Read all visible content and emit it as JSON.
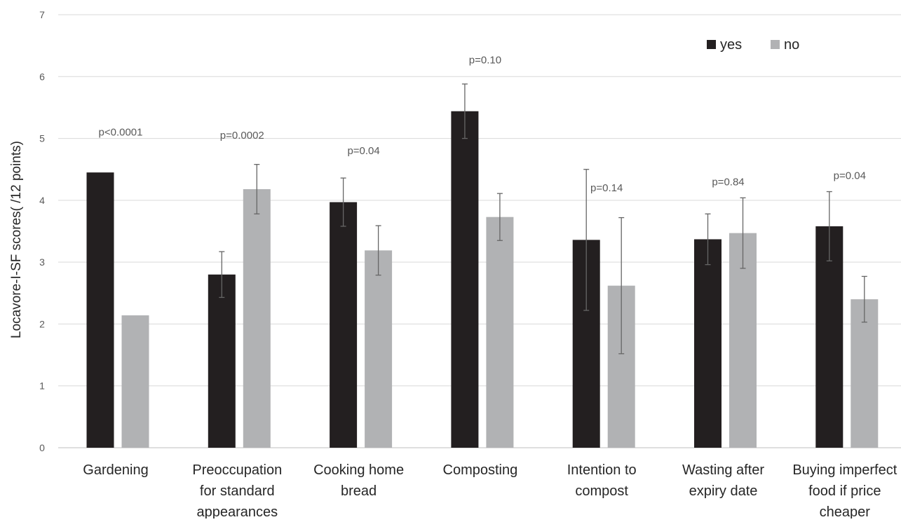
{
  "chart_data": {
    "type": "bar",
    "title": "",
    "xlabel": "",
    "ylabel": "Locavore-I-SF scores( /12 points)",
    "ylim": [
      0,
      7
    ],
    "yticks": [
      0,
      1,
      2,
      3,
      4,
      5,
      6,
      7
    ],
    "grid": true,
    "legend_position": "top-right",
    "categories": [
      [
        "Gardening"
      ],
      [
        "Preoccupation",
        "for standard",
        "appearances"
      ],
      [
        "Cooking home",
        "bread"
      ],
      [
        "Composting"
      ],
      [
        "Intention to",
        "compost"
      ],
      [
        "Wasting after",
        "expiry date"
      ],
      [
        "Buying imperfect",
        "food if price",
        "cheaper"
      ]
    ],
    "series": [
      {
        "name": "yes",
        "color": "#231f20",
        "values": [
          4.45,
          2.8,
          3.97,
          5.44,
          3.36,
          3.37,
          3.58
        ],
        "error": [
          null,
          0.37,
          0.39,
          0.44,
          1.14,
          0.41,
          0.56
        ]
      },
      {
        "name": "no",
        "color": "#b1b2b4",
        "values": [
          2.14,
          4.18,
          3.19,
          3.73,
          2.62,
          3.47,
          2.4
        ],
        "error": [
          null,
          0.4,
          0.4,
          0.38,
          1.1,
          0.57,
          0.37
        ]
      }
    ],
    "annotations": [
      {
        "text": "p<0.0001",
        "category": 0,
        "y": 5.1
      },
      {
        "text": "p=0.0002",
        "category": 1,
        "y": 5.05
      },
      {
        "text": "p=0.04",
        "category": 2,
        "y": 4.8
      },
      {
        "text": "p=0.10",
        "category": 3,
        "y": 6.27
      },
      {
        "text": "p=0.14",
        "category": 4,
        "y": 4.2
      },
      {
        "text": "p=0.84",
        "category": 5,
        "y": 4.3
      },
      {
        "text": "p=0.04",
        "category": 6,
        "y": 4.4
      }
    ]
  }
}
